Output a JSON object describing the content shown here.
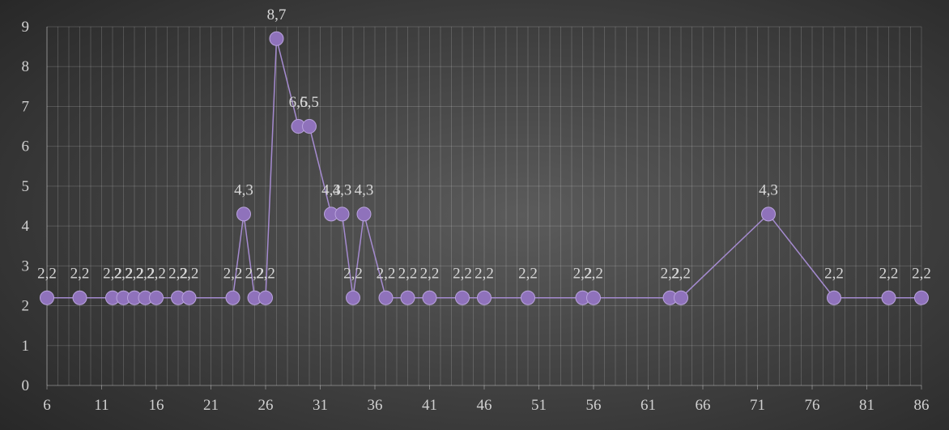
{
  "chart_data": {
    "type": "line",
    "title": "",
    "xlabel": "",
    "ylabel": "",
    "xlim": [
      6,
      86
    ],
    "ylim": [
      0,
      9
    ],
    "x_ticks": [
      6,
      11,
      16,
      21,
      26,
      31,
      36,
      41,
      46,
      51,
      56,
      61,
      66,
      71,
      76,
      81,
      86
    ],
    "y_ticks": [
      0,
      1,
      2,
      3,
      4,
      5,
      6,
      7,
      8,
      9
    ],
    "grid": true,
    "legend": "none",
    "colors": {
      "series": "#9b7fc6",
      "marker": "#8f72bb",
      "line": "#a58bd0"
    },
    "series": [
      {
        "x": [
          6,
          9,
          12,
          13,
          14,
          15,
          16,
          18,
          19,
          23,
          24,
          25,
          26,
          27,
          29,
          30,
          32,
          33,
          34,
          35,
          37,
          39,
          41,
          44,
          46,
          50,
          55,
          56,
          63,
          64,
          72,
          78,
          83,
          86
        ],
        "values": [
          2.2,
          2.2,
          2.2,
          2.2,
          2.2,
          2.2,
          2.2,
          2.2,
          2.2,
          2.2,
          4.3,
          2.2,
          2.2,
          8.7,
          6.5,
          6.5,
          4.3,
          4.3,
          2.2,
          4.3,
          2.2,
          2.2,
          2.2,
          2.2,
          2.2,
          2.2,
          2.2,
          2.2,
          2.2,
          2.2,
          4.3,
          2.2,
          2.2,
          2.2
        ],
        "labels": [
          "2,2",
          "2,2",
          "2,2",
          "2,2",
          "2,2",
          "2,2",
          "2,2",
          "2,2",
          "2,2",
          "2,2",
          "4,3",
          "2,2",
          "2,2",
          "8,7",
          "6,5",
          "6,5",
          "4,3",
          "4,3",
          "2,2",
          "4,3",
          "2,2",
          "2,2",
          "2,2",
          "2,2",
          "2,2",
          "2,2",
          "2,2",
          "2,2",
          "2,2",
          "2,2",
          "4,3",
          "2,2",
          "2,2",
          "2,2"
        ]
      }
    ]
  }
}
